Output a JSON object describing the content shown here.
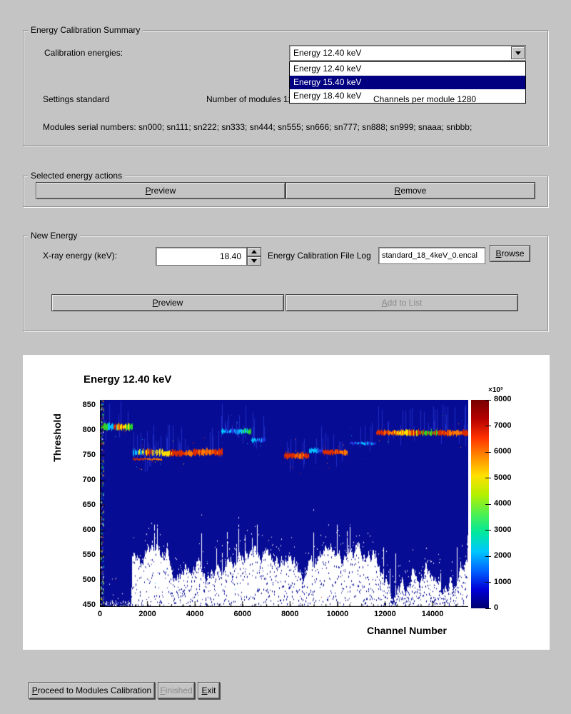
{
  "summary": {
    "title": "Energy Calibration Summary",
    "calibration_energies_label": "Calibration energies:",
    "combo_value": "Energy 12.40 keV",
    "dropdown_items": [
      "Energy 12.40 keV",
      "Energy 15.40 keV",
      "Energy 18.40 keV"
    ],
    "dropdown_selected_index": 1,
    "settings_label": "Settings standard",
    "modules_label": "Number of modules 12",
    "channels_label": "Channels per module 1280",
    "serials_label": "Modules serial numbers: sn000; sn111; sn222; sn333; sn444; sn555; sn666; sn777; sn888; sn999; snaaa; snbbb;"
  },
  "actions": {
    "title": "Selected energy actions",
    "preview_label": "Preview",
    "remove_label": "Remove"
  },
  "new_energy": {
    "title": "New Energy",
    "xray_label": "X-ray energy (keV):",
    "energy_value": "18.40",
    "file_log_label": "Energy Calibration File Log",
    "file_value": "standard_18_4keV_0.encal",
    "browse_label": "Browse",
    "preview_label": "Preview",
    "add_label": "Add to List"
  },
  "footer": {
    "proceed_label": "Proceed to Modules Calibration",
    "finished_label": "Finished",
    "exit_label": "Exit"
  },
  "chart_data": {
    "type": "heatmap",
    "title": "Energy 12.40 keV",
    "xlabel": "Channel Number",
    "ylabel": "Threshold",
    "xlim": [
      0,
      15500
    ],
    "ylim": [
      447,
      862
    ],
    "x_ticks": [
      0,
      2000,
      4000,
      6000,
      8000,
      10000,
      12000,
      14000
    ],
    "y_ticks": [
      450,
      500,
      550,
      600,
      650,
      700,
      750,
      800,
      850
    ],
    "background_color": "#070c94",
    "colorbar": {
      "min": 0,
      "max": 8000,
      "ticks": [
        0,
        1000,
        2000,
        3000,
        4000,
        5000,
        6000,
        7000,
        8000
      ],
      "multiplier_label": "×10³",
      "gradient": [
        "#00006e",
        "#0000d8",
        "#0064ff",
        "#00c8ff",
        "#00e89c",
        "#50f050",
        "#b4f000",
        "#ffe000",
        "#ff8c00",
        "#ff3200",
        "#b40000",
        "#780000"
      ]
    },
    "module_bands": [
      {
        "x0": 30,
        "x1": 1380,
        "y": 808,
        "height": 11,
        "colors": [
          "green",
          "cyan",
          "red",
          "yellow",
          "green"
        ]
      },
      {
        "x0": 1380,
        "x1": 2640,
        "y": 757,
        "height": 11,
        "colors": [
          "cyan",
          "yellow",
          "red",
          "yellow"
        ]
      },
      {
        "x0": 1380,
        "x1": 2600,
        "y": 743,
        "height": 3,
        "colors": [
          "red",
          "orange"
        ]
      },
      {
        "x0": 2640,
        "x1": 3900,
        "y": 755,
        "height": 11,
        "colors": [
          "yellow",
          "red",
          "red",
          "orange"
        ]
      },
      {
        "x0": 3900,
        "x1": 5180,
        "y": 757,
        "height": 11,
        "colors": [
          "red",
          "orange",
          "red"
        ]
      },
      {
        "x0": 5100,
        "x1": 6360,
        "y": 799,
        "height": 9,
        "colors": [
          "cyan",
          "blue",
          "cyan",
          "green"
        ]
      },
      {
        "x0": 6360,
        "x1": 6960,
        "y": 781,
        "height": 7,
        "colors": [
          "cyan",
          "blue"
        ]
      },
      {
        "x0": 7740,
        "x1": 8790,
        "y": 750,
        "height": 11,
        "colors": [
          "red",
          "orange",
          "red"
        ]
      },
      {
        "x0": 8790,
        "x1": 9360,
        "y": 760,
        "height": 8,
        "colors": [
          "cyan",
          "blue"
        ]
      },
      {
        "x0": 9360,
        "x1": 10410,
        "y": 757,
        "height": 9,
        "colors": [
          "red",
          "red",
          "orange"
        ]
      },
      {
        "x0": 10500,
        "x1": 11640,
        "y": 775,
        "height": 5,
        "colors": [
          "blue",
          "cyan",
          "blue"
        ]
      },
      {
        "x0": 11640,
        "x1": 15500,
        "y": 796,
        "height": 10,
        "colors": [
          "red",
          "orange",
          "yellow",
          "red",
          "green",
          "red",
          "orange",
          "red"
        ]
      }
    ],
    "noise": {
      "seed": 1337,
      "floor_min": 452,
      "floor_max": 580
    }
  }
}
